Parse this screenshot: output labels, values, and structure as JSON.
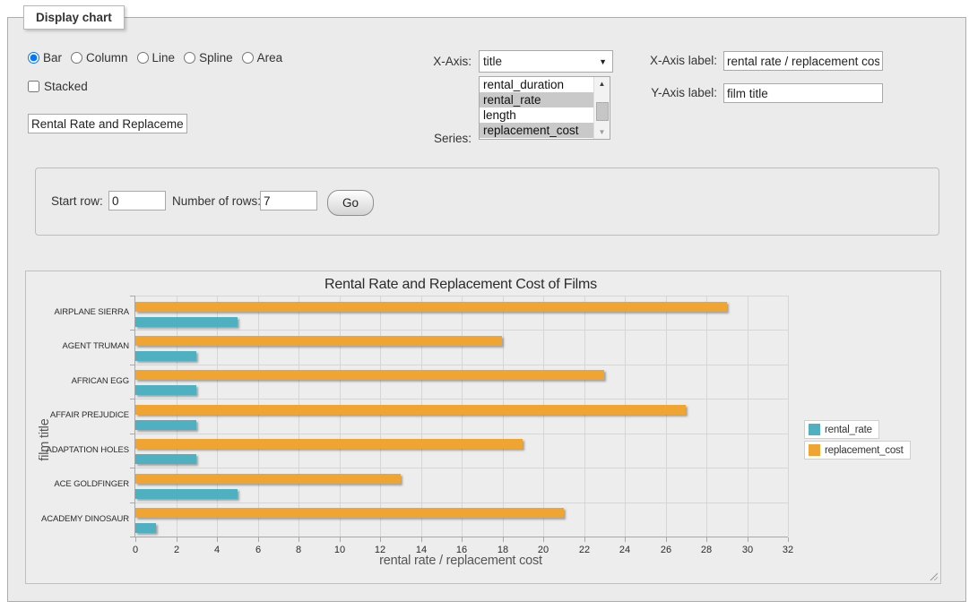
{
  "panel": {
    "legend": "Display chart"
  },
  "controls": {
    "chart_types": [
      {
        "label": "Bar",
        "checked": true
      },
      {
        "label": "Column",
        "checked": false
      },
      {
        "label": "Line",
        "checked": false
      },
      {
        "label": "Spline",
        "checked": false
      },
      {
        "label": "Area",
        "checked": false
      }
    ],
    "stacked_label": "Stacked",
    "stacked_checked": false,
    "chart_title_input": "Rental Rate and Replacement Cost of Films",
    "x_axis_field": {
      "label": "X-Axis:",
      "selected": "title"
    },
    "series_field": {
      "label": "Series:",
      "options": [
        {
          "label": "rental_duration",
          "selected": false
        },
        {
          "label": "rental_rate",
          "selected": true
        },
        {
          "label": "length",
          "selected": false
        },
        {
          "label": "replacement_cost",
          "selected": true
        }
      ]
    },
    "x_axis_label_field": {
      "label": "X-Axis label:",
      "value": "rental rate / replacement cost"
    },
    "y_axis_label_field": {
      "label": "Y-Axis label:",
      "value": "film title"
    }
  },
  "row_form": {
    "start_row_label": "Start row:",
    "start_row_value": "0",
    "num_rows_label": "Number of rows:",
    "num_rows_value": "7",
    "go_label": "Go"
  },
  "chart_data": {
    "type": "bar",
    "title": "Rental Rate and Replacement Cost of Films",
    "xlabel": "rental rate / replacement cost",
    "ylabel": "film title",
    "categories": [
      "AIRPLANE SIERRA",
      "AGENT TRUMAN",
      "AFRICAN EGG",
      "AFFAIR PREJUDICE",
      "ADAPTATION HOLES",
      "ACE GOLDFINGER",
      "ACADEMY DINOSAUR"
    ],
    "series": [
      {
        "name": "rental_rate",
        "color": "#4FB0C2",
        "values": [
          4.99,
          2.99,
          2.99,
          2.99,
          2.99,
          4.99,
          0.99
        ]
      },
      {
        "name": "replacement_cost",
        "color": "#F0A431",
        "values": [
          28.99,
          17.99,
          22.99,
          26.99,
          18.99,
          12.99,
          20.99
        ]
      }
    ],
    "band_series_order": [
      "replacement_cost",
      "rental_rate"
    ],
    "xlim": [
      0,
      32
    ],
    "xtick_step": 2,
    "grid": true,
    "legend_position": "right"
  }
}
